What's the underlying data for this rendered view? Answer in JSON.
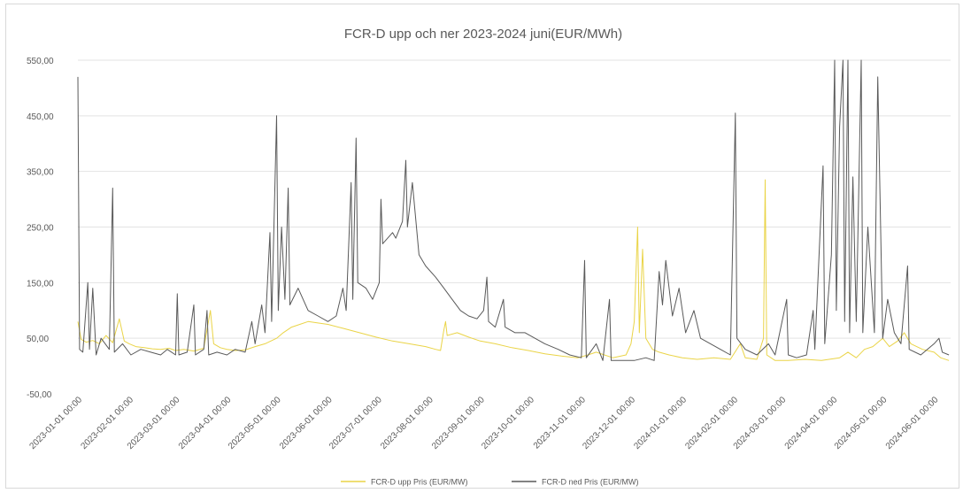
{
  "chart_data": {
    "type": "line",
    "title": "FCR-D upp och ner 2023-2024 juni(EUR/MWh)",
    "xlabel": "",
    "ylabel": "",
    "y_ticks": [
      "-50,00",
      "50,00",
      "150,00",
      "250,00",
      "350,00",
      "450,00",
      "550,00"
    ],
    "ylim": [
      -50,
      550
    ],
    "x_ticks": [
      "2023-01-01 00:00",
      "2023-02-01 00:00",
      "2023-03-01 00:00",
      "2023-04-01 00:00",
      "2023-05-01 00:00",
      "2023-06-01 00:00",
      "2023-07-01 00:00",
      "2023-08-01 00:00",
      "2023-09-01 00:00",
      "2023-10-01 00:00",
      "2023-11-01 00:00",
      "2023-12-01 00:00",
      "2024-01-01 00:00",
      "2024-02-01 00:00",
      "2024-03-01 00:00",
      "2024-04-01 00:00",
      "2024-05-01 00:00",
      "2024-06-01 00:00"
    ],
    "xlim": [
      "2023-01-01",
      "2024-06-11"
    ],
    "grid": true,
    "legend": "bottom",
    "series": [
      {
        "name": "FCR-D upp Pris (EUR/MW)",
        "color": "#ead447",
        "points": [
          [
            "2023-01-01",
            80
          ],
          [
            "2023-01-03",
            48
          ],
          [
            "2023-01-06",
            43
          ],
          [
            "2023-01-10",
            46
          ],
          [
            "2023-01-14",
            40
          ],
          [
            "2023-01-18",
            55
          ],
          [
            "2023-01-22",
            42
          ],
          [
            "2023-01-26",
            85
          ],
          [
            "2023-01-29",
            45
          ],
          [
            "2023-02-01",
            40
          ],
          [
            "2023-02-05",
            35
          ],
          [
            "2023-02-10",
            33
          ],
          [
            "2023-02-15",
            31
          ],
          [
            "2023-02-20",
            30
          ],
          [
            "2023-02-25",
            32
          ],
          [
            "2023-03-01",
            28
          ],
          [
            "2023-03-06",
            30
          ],
          [
            "2023-03-12",
            27
          ],
          [
            "2023-03-18",
            32
          ],
          [
            "2023-03-22",
            100
          ],
          [
            "2023-03-24",
            40
          ],
          [
            "2023-03-28",
            33
          ],
          [
            "2023-04-01",
            30
          ],
          [
            "2023-04-06",
            28
          ],
          [
            "2023-04-12",
            29
          ],
          [
            "2023-04-18",
            35
          ],
          [
            "2023-04-24",
            40
          ],
          [
            "2023-05-01",
            50
          ],
          [
            "2023-05-05",
            60
          ],
          [
            "2023-05-10",
            70
          ],
          [
            "2023-05-15",
            75
          ],
          [
            "2023-05-20",
            80
          ],
          [
            "2023-05-25",
            78
          ],
          [
            "2023-06-01",
            75
          ],
          [
            "2023-06-10",
            68
          ],
          [
            "2023-06-20",
            60
          ],
          [
            "2023-06-30",
            52
          ],
          [
            "2023-07-10",
            45
          ],
          [
            "2023-07-20",
            40
          ],
          [
            "2023-07-30",
            35
          ],
          [
            "2023-08-05",
            30
          ],
          [
            "2023-08-08",
            28
          ],
          [
            "2023-08-10",
            65
          ],
          [
            "2023-08-11",
            80
          ],
          [
            "2023-08-12",
            55
          ],
          [
            "2023-08-18",
            60
          ],
          [
            "2023-08-25",
            52
          ],
          [
            "2023-09-01",
            45
          ],
          [
            "2023-09-10",
            40
          ],
          [
            "2023-09-20",
            33
          ],
          [
            "2023-09-30",
            28
          ],
          [
            "2023-10-10",
            22
          ],
          [
            "2023-10-20",
            18
          ],
          [
            "2023-10-30",
            15
          ],
          [
            "2023-11-05",
            20
          ],
          [
            "2023-11-10",
            25
          ],
          [
            "2023-11-20",
            15
          ],
          [
            "2023-11-28",
            20
          ],
          [
            "2023-12-01",
            40
          ],
          [
            "2023-12-03",
            80
          ],
          [
            "2023-12-05",
            250
          ],
          [
            "2023-12-06",
            60
          ],
          [
            "2023-12-08",
            210
          ],
          [
            "2023-12-10",
            50
          ],
          [
            "2023-12-14",
            30
          ],
          [
            "2023-12-18",
            25
          ],
          [
            "2023-12-24",
            20
          ],
          [
            "2024-01-01",
            15
          ],
          [
            "2024-01-10",
            12
          ],
          [
            "2024-01-20",
            15
          ],
          [
            "2024-01-30",
            12
          ],
          [
            "2024-02-05",
            40
          ],
          [
            "2024-02-08",
            15
          ],
          [
            "2024-02-15",
            12
          ],
          [
            "2024-02-19",
            50
          ],
          [
            "2024-02-20",
            335
          ],
          [
            "2024-02-21",
            20
          ],
          [
            "2024-02-26",
            10
          ],
          [
            "2024-03-05",
            10
          ],
          [
            "2024-03-15",
            12
          ],
          [
            "2024-03-25",
            10
          ],
          [
            "2024-04-05",
            15
          ],
          [
            "2024-04-10",
            25
          ],
          [
            "2024-04-15",
            15
          ],
          [
            "2024-04-20",
            30
          ],
          [
            "2024-04-25",
            35
          ],
          [
            "2024-05-01",
            50
          ],
          [
            "2024-05-05",
            35
          ],
          [
            "2024-05-10",
            45
          ],
          [
            "2024-05-14",
            60
          ],
          [
            "2024-05-18",
            40
          ],
          [
            "2024-05-25",
            30
          ],
          [
            "2024-06-01",
            25
          ],
          [
            "2024-06-05",
            15
          ],
          [
            "2024-06-10",
            10
          ]
        ]
      },
      {
        "name": "FCR-D ned Pris (EUR/MW)",
        "color": "#595959",
        "points": [
          [
            "2023-01-01",
            520
          ],
          [
            "2023-01-02",
            30
          ],
          [
            "2023-01-04",
            25
          ],
          [
            "2023-01-07",
            150
          ],
          [
            "2023-01-08",
            30
          ],
          [
            "2023-01-10",
            140
          ],
          [
            "2023-01-12",
            20
          ],
          [
            "2023-01-15",
            50
          ],
          [
            "2023-01-20",
            30
          ],
          [
            "2023-01-22",
            320
          ],
          [
            "2023-01-23",
            25
          ],
          [
            "2023-01-28",
            40
          ],
          [
            "2023-02-02",
            20
          ],
          [
            "2023-02-08",
            30
          ],
          [
            "2023-02-14",
            25
          ],
          [
            "2023-02-20",
            20
          ],
          [
            "2023-02-24",
            30
          ],
          [
            "2023-03-01",
            20
          ],
          [
            "2023-03-02",
            130
          ],
          [
            "2023-03-03",
            20
          ],
          [
            "2023-03-08",
            25
          ],
          [
            "2023-03-12",
            110
          ],
          [
            "2023-03-13",
            20
          ],
          [
            "2023-03-18",
            30
          ],
          [
            "2023-03-20",
            100
          ],
          [
            "2023-03-21",
            20
          ],
          [
            "2023-03-26",
            25
          ],
          [
            "2023-04-01",
            20
          ],
          [
            "2023-04-06",
            30
          ],
          [
            "2023-04-12",
            25
          ],
          [
            "2023-04-16",
            80
          ],
          [
            "2023-04-18",
            40
          ],
          [
            "2023-04-22",
            110
          ],
          [
            "2023-04-24",
            60
          ],
          [
            "2023-04-27",
            240
          ],
          [
            "2023-04-28",
            80
          ],
          [
            "2023-05-01",
            450
          ],
          [
            "2023-05-02",
            100
          ],
          [
            "2023-05-04",
            250
          ],
          [
            "2023-05-06",
            120
          ],
          [
            "2023-05-08",
            320
          ],
          [
            "2023-05-09",
            110
          ],
          [
            "2023-05-14",
            140
          ],
          [
            "2023-05-20",
            100
          ],
          [
            "2023-05-26",
            90
          ],
          [
            "2023-06-01",
            80
          ],
          [
            "2023-06-06",
            90
          ],
          [
            "2023-06-10",
            140
          ],
          [
            "2023-06-12",
            100
          ],
          [
            "2023-06-15",
            330
          ],
          [
            "2023-06-16",
            120
          ],
          [
            "2023-06-18",
            410
          ],
          [
            "2023-06-19",
            150
          ],
          [
            "2023-06-24",
            140
          ],
          [
            "2023-06-28",
            120
          ],
          [
            "2023-07-02",
            150
          ],
          [
            "2023-07-03",
            300
          ],
          [
            "2023-07-04",
            220
          ],
          [
            "2023-07-10",
            240
          ],
          [
            "2023-07-12",
            230
          ],
          [
            "2023-07-16",
            260
          ],
          [
            "2023-07-18",
            370
          ],
          [
            "2023-07-19",
            250
          ],
          [
            "2023-07-22",
            330
          ],
          [
            "2023-07-26",
            200
          ],
          [
            "2023-07-30",
            180
          ],
          [
            "2023-08-05",
            160
          ],
          [
            "2023-08-10",
            140
          ],
          [
            "2023-08-15",
            120
          ],
          [
            "2023-08-20",
            100
          ],
          [
            "2023-08-25",
            90
          ],
          [
            "2023-08-30",
            85
          ],
          [
            "2023-09-03",
            100
          ],
          [
            "2023-09-05",
            160
          ],
          [
            "2023-09-06",
            80
          ],
          [
            "2023-09-10",
            70
          ],
          [
            "2023-09-15",
            120
          ],
          [
            "2023-09-16",
            70
          ],
          [
            "2023-09-22",
            60
          ],
          [
            "2023-09-28",
            60
          ],
          [
            "2023-10-04",
            50
          ],
          [
            "2023-10-10",
            40
          ],
          [
            "2023-10-18",
            30
          ],
          [
            "2023-10-25",
            20
          ],
          [
            "2023-11-01",
            15
          ],
          [
            "2023-11-03",
            190
          ],
          [
            "2023-11-04",
            15
          ],
          [
            "2023-11-10",
            40
          ],
          [
            "2023-11-14",
            10
          ],
          [
            "2023-11-18",
            120
          ],
          [
            "2023-11-19",
            10
          ],
          [
            "2023-11-25",
            10
          ],
          [
            "2023-12-03",
            10
          ],
          [
            "2023-12-10",
            15
          ],
          [
            "2023-12-15",
            10
          ],
          [
            "2023-12-18",
            170
          ],
          [
            "2023-12-20",
            110
          ],
          [
            "2023-12-22",
            190
          ],
          [
            "2023-12-26",
            90
          ],
          [
            "2023-12-30",
            140
          ],
          [
            "2024-01-03",
            60
          ],
          [
            "2024-01-08",
            100
          ],
          [
            "2024-01-12",
            50
          ],
          [
            "2024-01-18",
            40
          ],
          [
            "2024-01-24",
            30
          ],
          [
            "2024-01-30",
            20
          ],
          [
            "2024-02-02",
            455
          ],
          [
            "2024-02-03",
            50
          ],
          [
            "2024-02-08",
            30
          ],
          [
            "2024-02-15",
            20
          ],
          [
            "2024-02-22",
            40
          ],
          [
            "2024-02-26",
            20
          ],
          [
            "2024-03-04",
            120
          ],
          [
            "2024-03-05",
            20
          ],
          [
            "2024-03-10",
            15
          ],
          [
            "2024-03-16",
            20
          ],
          [
            "2024-03-20",
            100
          ],
          [
            "2024-03-21",
            30
          ],
          [
            "2024-03-26",
            360
          ],
          [
            "2024-03-27",
            40
          ],
          [
            "2024-03-31",
            200
          ],
          [
            "2024-04-02",
            550
          ],
          [
            "2024-04-03",
            100
          ],
          [
            "2024-04-05",
            430
          ],
          [
            "2024-04-07",
            550
          ],
          [
            "2024-04-08",
            80
          ],
          [
            "2024-04-10",
            550
          ],
          [
            "2024-04-11",
            60
          ],
          [
            "2024-04-13",
            340
          ],
          [
            "2024-04-15",
            80
          ],
          [
            "2024-04-18",
            550
          ],
          [
            "2024-04-19",
            60
          ],
          [
            "2024-04-22",
            250
          ],
          [
            "2024-04-26",
            60
          ],
          [
            "2024-04-28",
            520
          ],
          [
            "2024-05-01",
            50
          ],
          [
            "2024-05-04",
            120
          ],
          [
            "2024-05-08",
            60
          ],
          [
            "2024-05-12",
            40
          ],
          [
            "2024-05-16",
            180
          ],
          [
            "2024-05-17",
            30
          ],
          [
            "2024-05-24",
            20
          ],
          [
            "2024-06-01",
            40
          ],
          [
            "2024-06-04",
            50
          ],
          [
            "2024-06-06",
            25
          ],
          [
            "2024-06-10",
            20
          ]
        ]
      }
    ]
  }
}
